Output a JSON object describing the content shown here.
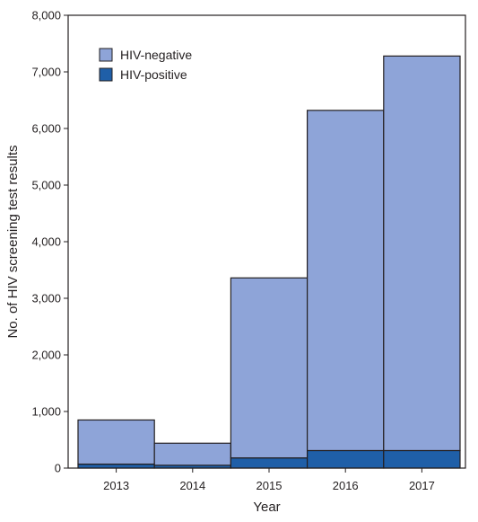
{
  "chart_data": {
    "type": "bar",
    "stacked": true,
    "categories": [
      "2013",
      "2014",
      "2015",
      "2016",
      "2017"
    ],
    "series": [
      {
        "name": "HIV-positive",
        "values": [
          70,
          50,
          180,
          310,
          310
        ],
        "color": "#1f5fa8"
      },
      {
        "name": "HIV-negative",
        "values": [
          780,
          390,
          3180,
          6010,
          6970
        ],
        "color": "#8ea4d8"
      }
    ],
    "xlabel": "Year",
    "ylabel": "No. of HIV screening test results",
    "ylim": [
      0,
      8000
    ],
    "yticks": [
      0,
      1000,
      2000,
      3000,
      4000,
      5000,
      6000,
      7000,
      8000
    ],
    "ytick_labels": [
      "0",
      "1,000",
      "2,000",
      "3,000",
      "4,000",
      "5,000",
      "6,000",
      "7,000",
      "8,000"
    ],
    "legend": {
      "position": "top-left",
      "entries": [
        {
          "label": "HIV-negative",
          "color": "#8ea4d8"
        },
        {
          "label": "HIV-positive",
          "color": "#1f5fa8"
        }
      ]
    },
    "grid": false
  }
}
